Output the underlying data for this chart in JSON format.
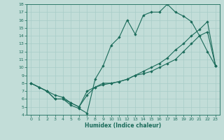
{
  "xlabel": "Humidex (Indice chaleur)",
  "bg_color": "#c2ddd8",
  "line_color": "#1a6b5a",
  "grid_color": "#a8ccc8",
  "xlim": [
    -0.5,
    23.5
  ],
  "ylim": [
    4,
    18
  ],
  "xticks": [
    0,
    1,
    2,
    3,
    4,
    5,
    6,
    7,
    8,
    9,
    10,
    11,
    12,
    13,
    14,
    15,
    16,
    17,
    18,
    19,
    20,
    21,
    22,
    23
  ],
  "yticks": [
    4,
    5,
    6,
    7,
    8,
    9,
    10,
    11,
    12,
    13,
    14,
    15,
    16,
    17,
    18
  ],
  "line1_x": [
    0,
    1,
    2,
    3,
    4,
    5,
    6,
    7,
    8,
    9,
    10,
    11,
    12,
    13,
    14,
    15,
    16,
    17,
    18,
    19,
    20,
    21,
    22,
    23
  ],
  "line1_y": [
    8,
    7.5,
    7,
    6,
    6,
    5.2,
    4.8,
    4.2,
    8.5,
    10.2,
    12.8,
    13.8,
    16.0,
    14.2,
    16.6,
    17.0,
    17.0,
    18.0,
    17.0,
    16.5,
    15.8,
    14.0,
    12.0,
    10.2
  ],
  "line2_x": [
    0,
    1,
    2,
    3,
    4,
    5,
    6,
    7,
    8,
    9,
    10,
    11,
    12,
    13,
    14,
    15,
    16,
    17,
    18,
    19,
    20,
    21,
    22,
    23
  ],
  "line2_y": [
    8,
    7.5,
    7.0,
    6.0,
    6.0,
    5.5,
    5.0,
    6.5,
    7.5,
    8.0,
    8.0,
    8.2,
    8.5,
    9.0,
    9.5,
    10.0,
    10.5,
    11.2,
    12.2,
    13.0,
    14.0,
    14.8,
    15.8,
    10.2
  ],
  "line3_x": [
    0,
    2,
    3,
    4,
    5,
    6,
    7,
    8,
    9,
    10,
    11,
    12,
    13,
    14,
    15,
    16,
    17,
    18,
    19,
    20,
    21,
    22,
    23
  ],
  "line3_y": [
    8,
    7.0,
    6.5,
    6.2,
    5.5,
    5.0,
    7.0,
    7.5,
    7.8,
    8.0,
    8.2,
    8.5,
    9.0,
    9.2,
    9.5,
    10.0,
    10.5,
    11.0,
    12.0,
    13.0,
    14.0,
    14.5,
    10.2
  ]
}
